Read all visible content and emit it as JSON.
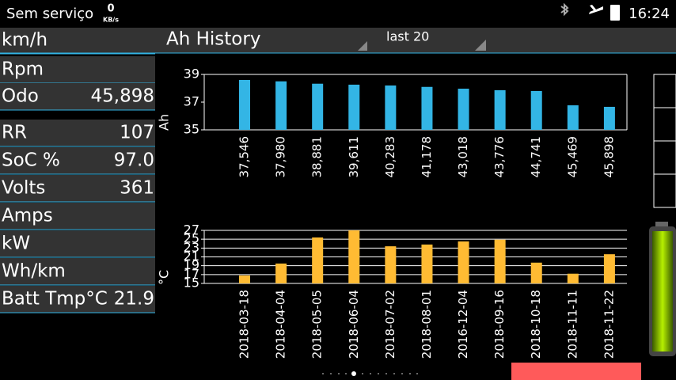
{
  "status_bar": {
    "carrier": "Sem serviço",
    "speed_value": "0",
    "speed_unit": "KB/s",
    "time": "16:24"
  },
  "header": {
    "title": "Ah History",
    "range": "last 20"
  },
  "metrics": [
    {
      "label": "km/h"
    },
    {
      "label": "Rpm"
    },
    {
      "label": "Odo",
      "value": "45,898"
    },
    {
      "label": "RR",
      "value": "107"
    },
    {
      "label": "SoC %",
      "value": "97.0"
    },
    {
      "label": "Volts",
      "value": "361"
    },
    {
      "label": "Amps"
    },
    {
      "label": "kW"
    },
    {
      "label": "Wh/km"
    },
    {
      "label": "Batt Tmp°C",
      "value": "21.9"
    }
  ],
  "chart_data": [
    {
      "type": "bar",
      "y_label": "Ah",
      "color": "#33b5e5",
      "categories": [
        "37,546",
        "37,980",
        "38,881",
        "39,611",
        "40,283",
        "41,178",
        "43,018",
        "43,776",
        "44,741",
        "45,469",
        "45,898"
      ],
      "values": [
        38.6,
        38.5,
        38.33,
        38.26,
        38.2,
        38.1,
        37.97,
        37.86,
        37.8,
        36.77,
        36.66
      ],
      "ylim": [
        35,
        39
      ],
      "yticks": [
        35,
        37,
        39
      ],
      "grid": false
    },
    {
      "type": "bar",
      "y_label": "°C",
      "color": "#ffbb33",
      "categories": [
        "2018-03-18",
        "2018-04-04",
        "2018-05-05",
        "2018-06-04",
        "2018-07-02",
        "2018-08-01",
        "2016-12-04",
        "2018-09-16",
        "2018-10-18",
        "2018-11-11",
        "2018-11-22"
      ],
      "values": [
        16.8,
        19.5,
        25.4,
        27,
        23.4,
        23.8,
        24.5,
        24.9,
        19.7,
        17.2,
        21.6
      ],
      "ylim": [
        15,
        27
      ],
      "yticks": [
        15,
        17,
        19,
        21,
        23,
        25,
        27
      ],
      "grid": true
    }
  ]
}
